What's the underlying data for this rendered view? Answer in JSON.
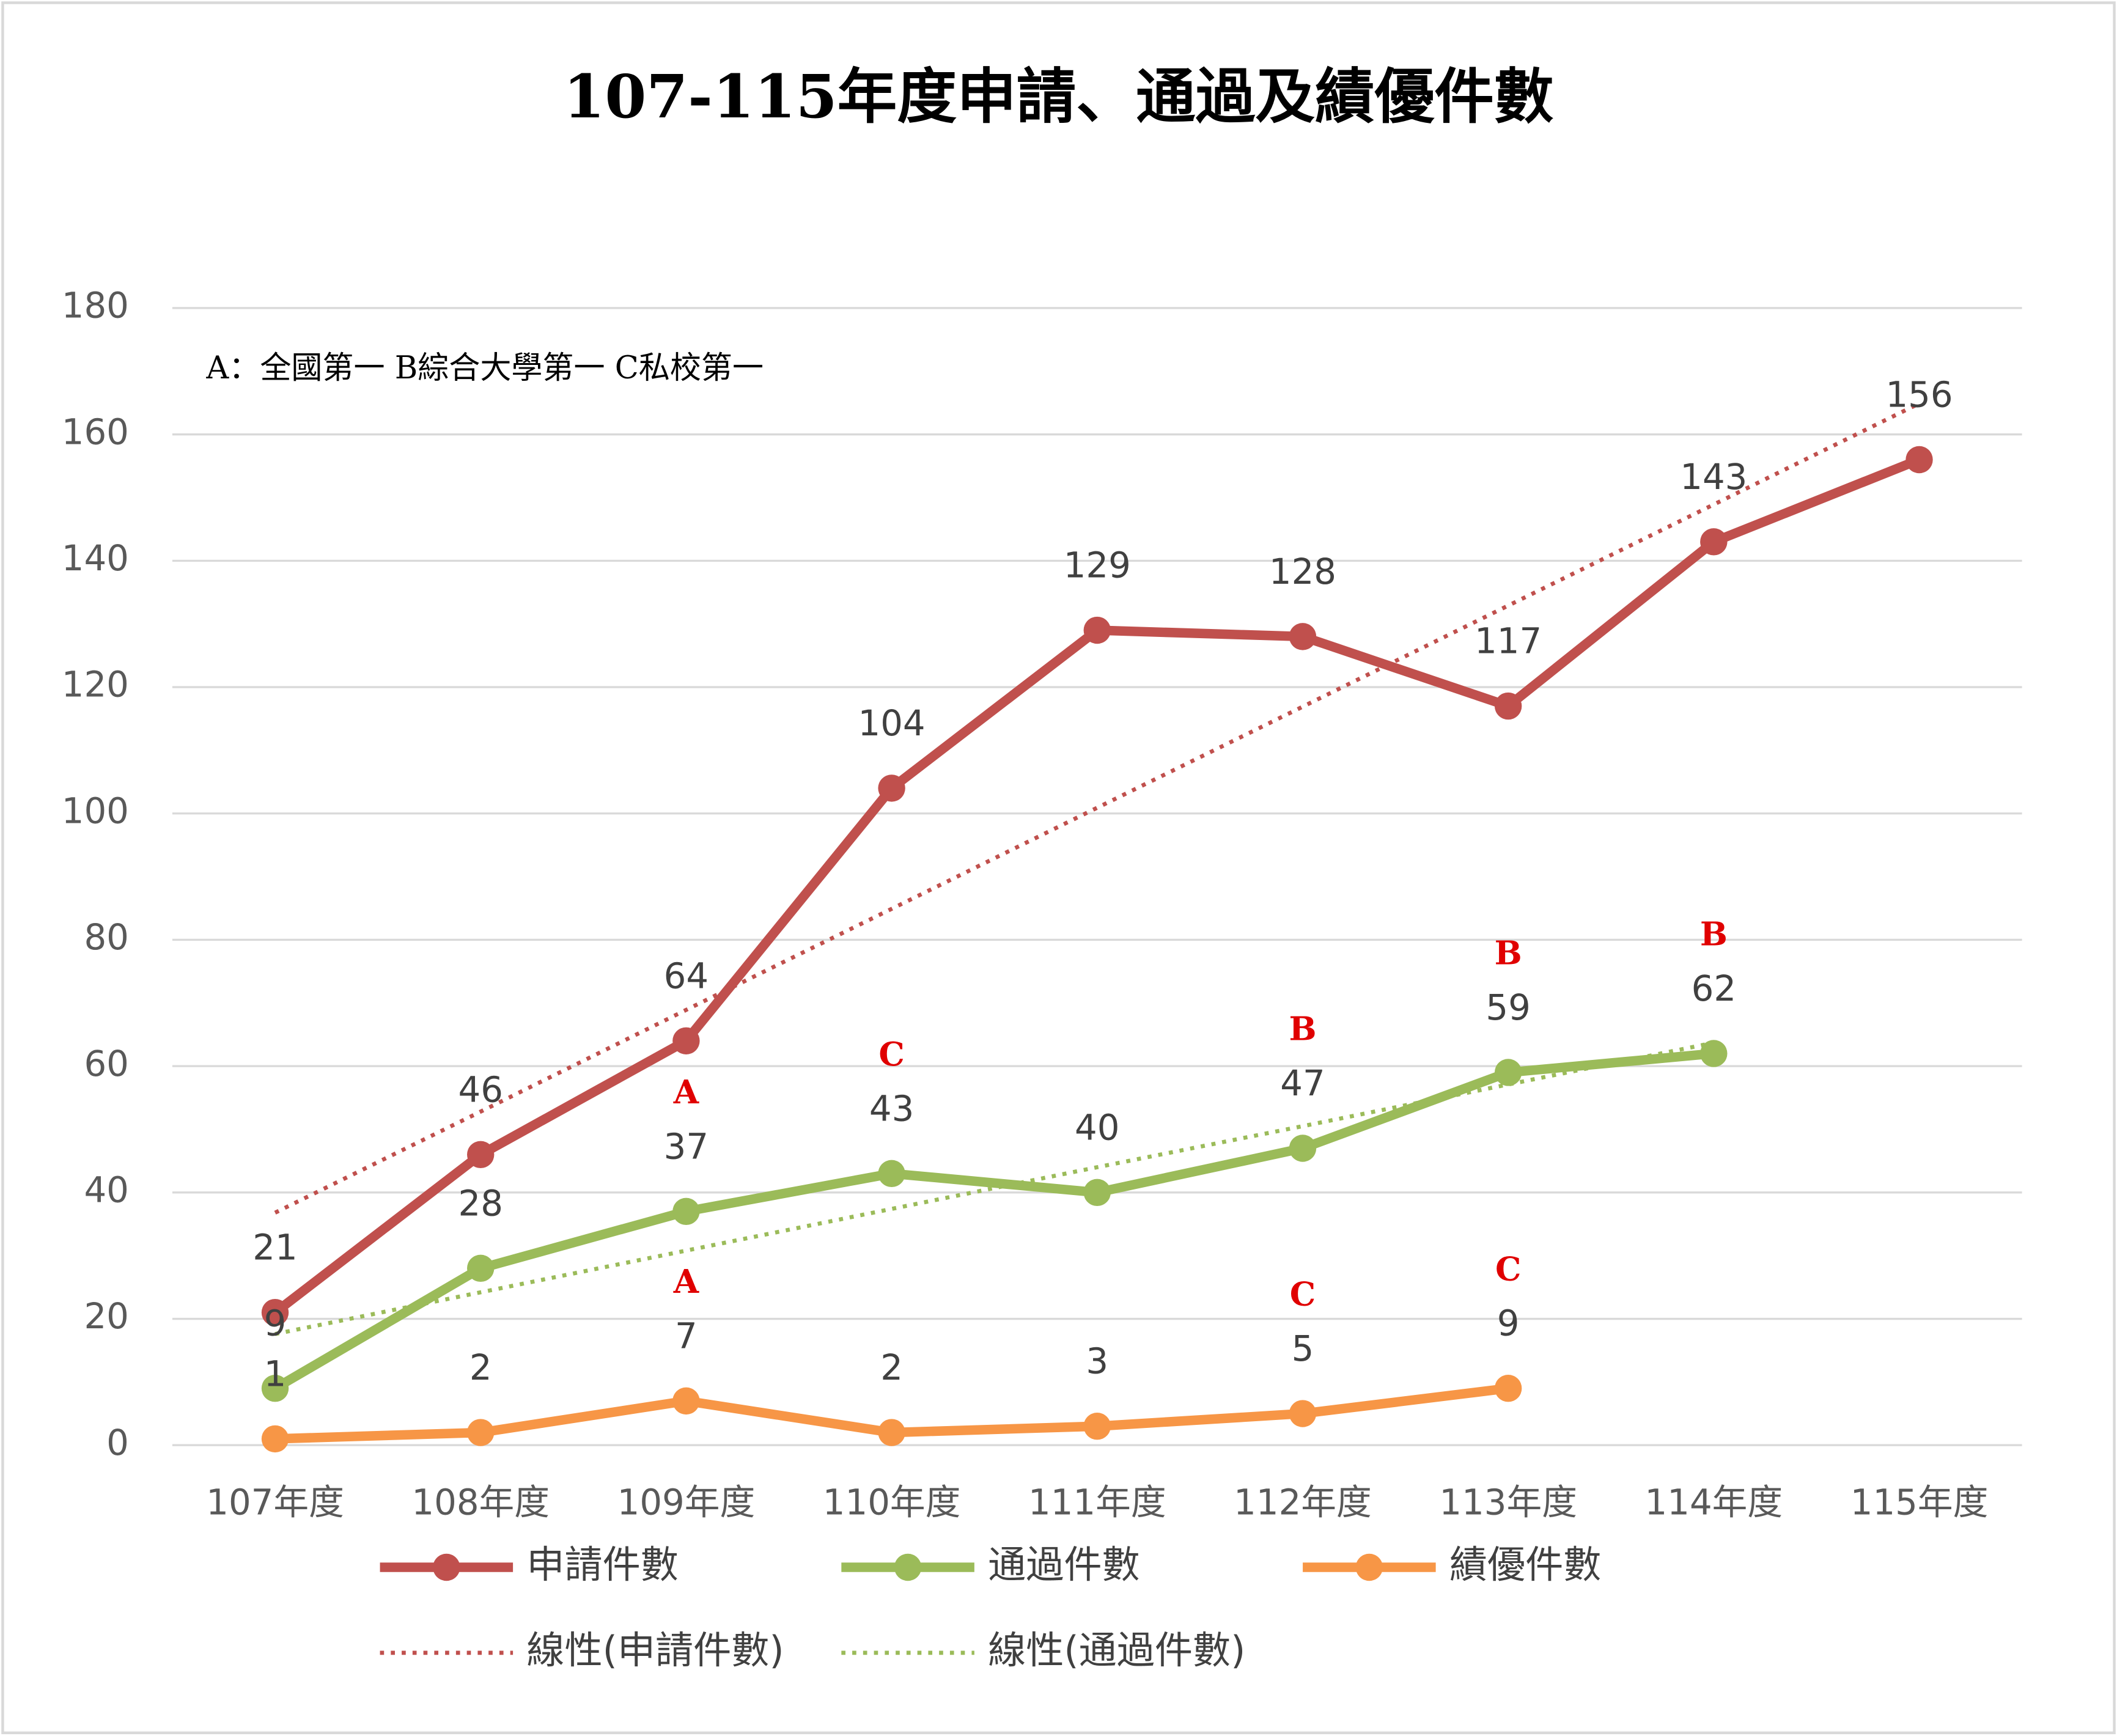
{
  "chart_data": {
    "type": "line",
    "title": "107-115年度申請、通過及績優件數",
    "note": "A：全國第一  B綜合大學第一  C私校第一",
    "categories": [
      "107年度",
      "108年度",
      "109年度",
      "110年度",
      "111年度",
      "112年度",
      "113年度",
      "114年度",
      "115年度"
    ],
    "ylim": [
      0,
      180
    ],
    "yticks": [
      0,
      20,
      40,
      60,
      80,
      100,
      120,
      140,
      160,
      180
    ],
    "grid": true,
    "series": [
      {
        "name": "申請件數",
        "color": "#c0504d",
        "values": [
          21,
          46,
          64,
          104,
          129,
          128,
          117,
          143,
          156
        ]
      },
      {
        "name": "通過件數",
        "color": "#9bbb59",
        "values": [
          9,
          28,
          37,
          43,
          40,
          47,
          59,
          62,
          null
        ],
        "badges": [
          null,
          null,
          "A",
          "C",
          null,
          "B",
          "B",
          "B",
          null
        ]
      },
      {
        "name": "績優件數",
        "color": "#f79646",
        "values": [
          1,
          2,
          7,
          2,
          3,
          5,
          9,
          null,
          null
        ],
        "badges": [
          null,
          null,
          "A",
          null,
          null,
          "C",
          "C",
          null,
          null
        ]
      },
      {
        "name": "線性(申請件數)",
        "color": "#c0504d",
        "dotted": true,
        "values": [
          36.8,
          52.8,
          68.9,
          84.9,
          100.9,
          116.9,
          132.9,
          148.9,
          164.9
        ]
      },
      {
        "name": "線性(通過件數)",
        "color": "#9bbb59",
        "dotted": true,
        "values": [
          17.6,
          24.2,
          30.8,
          37.4,
          44.0,
          50.5,
          57.1,
          63.7,
          null
        ]
      }
    ]
  }
}
